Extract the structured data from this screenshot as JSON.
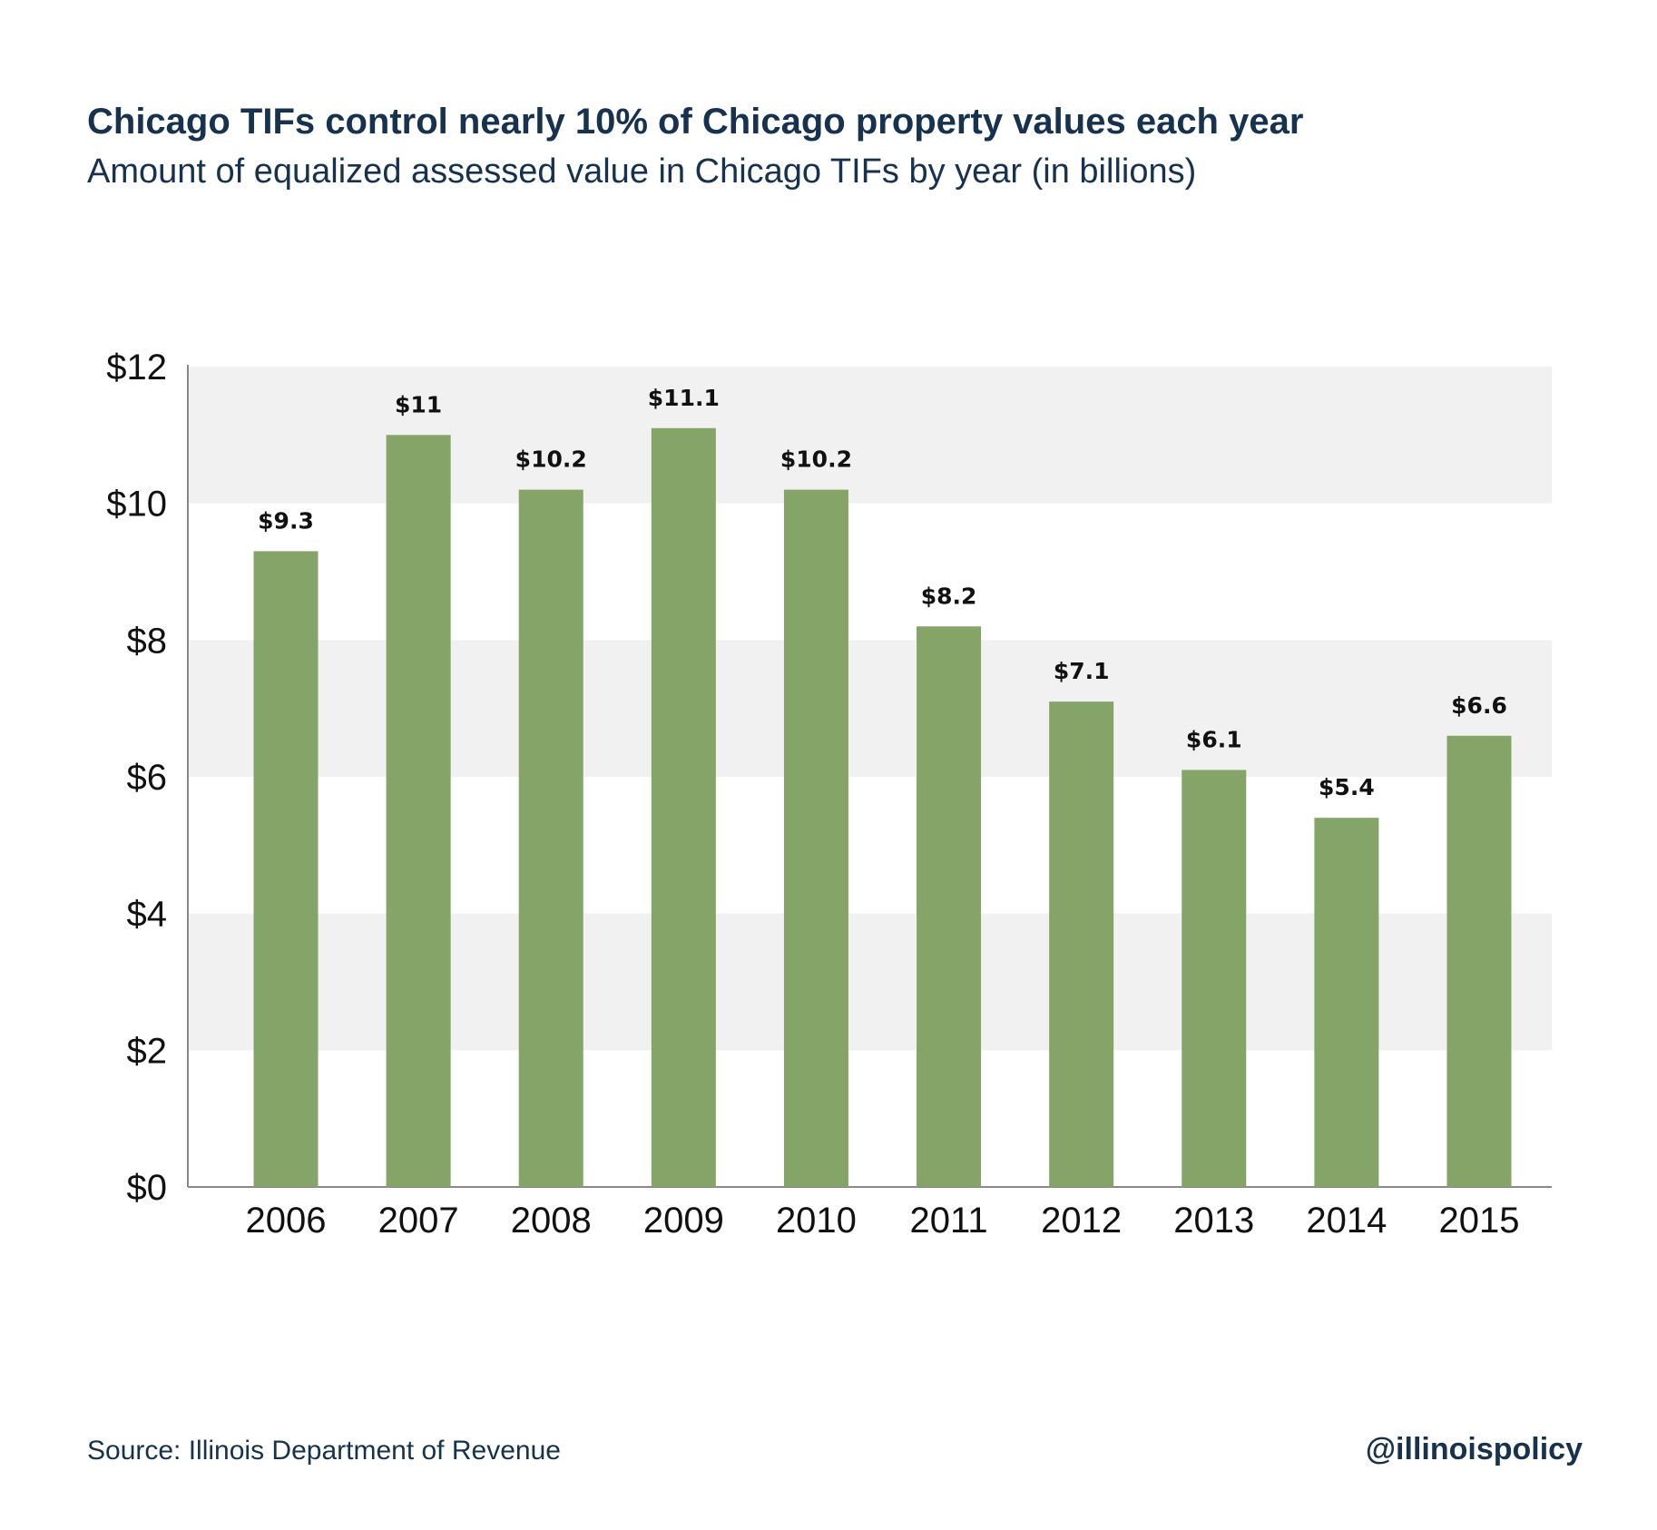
{
  "header": {
    "title": "Chicago TIFs control nearly 10% of Chicago property values each year",
    "subtitle": "Amount of equalized assessed value in Chicago TIFs by year (in billions)"
  },
  "footer": {
    "source": "Source: Illinois Department of Revenue",
    "handle": "@illinoispolicy"
  },
  "colors": {
    "bar": "#84a468",
    "band": "#f1f1f1",
    "text": "#16324f",
    "axis": "#888888"
  },
  "chart_data": {
    "type": "bar",
    "title": "Chicago TIFs control nearly 10% of Chicago property values each year",
    "subtitle": "Amount of equalized assessed value in Chicago TIFs by year (in billions)",
    "xlabel": "",
    "ylabel": "",
    "categories": [
      "2006",
      "2007",
      "2008",
      "2009",
      "2010",
      "2011",
      "2012",
      "2013",
      "2014",
      "2015"
    ],
    "values": [
      9.3,
      11,
      10.2,
      11.1,
      10.2,
      8.2,
      7.1,
      6.1,
      5.4,
      6.6
    ],
    "data_labels": [
      "$9.3",
      "$11",
      "$10.2",
      "$11.1",
      "$10.2",
      "$8.2",
      "$7.1",
      "$6.1",
      "$5.4",
      "$6.6"
    ],
    "ylim": [
      0,
      12
    ],
    "yticks": [
      0,
      2,
      4,
      6,
      8,
      10,
      12
    ],
    "ytick_labels": [
      "$0",
      "$2",
      "$4",
      "$6",
      "$8",
      "$10",
      "$12"
    ],
    "grid": "alternating horizontal bands",
    "legend": "none"
  }
}
